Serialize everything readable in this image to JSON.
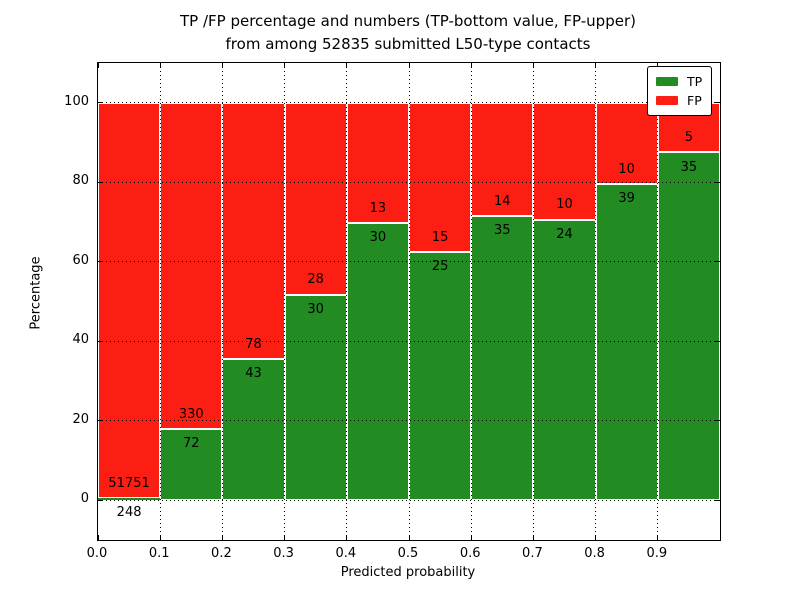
{
  "chart_data": {
    "type": "bar",
    "stacked": true,
    "title_line1": "TP /FP percentage and numbers (TP-bottom value, FP-upper)",
    "title_line2": "from among 52835 submitted L50-type contacts",
    "xlabel": "Predicted probability",
    "ylabel": "Percentage",
    "x_ticks": [
      "0.0",
      "0.1",
      "0.2",
      "0.3",
      "0.4",
      "0.5",
      "0.6",
      "0.7",
      "0.8",
      "0.9"
    ],
    "x_tick_values": [
      0.0,
      0.1,
      0.2,
      0.3,
      0.4,
      0.5,
      0.6,
      0.7,
      0.8,
      0.9
    ],
    "y_ticks": [
      0,
      20,
      40,
      60,
      80,
      100
    ],
    "xlim": [
      0.0,
      1.0
    ],
    "ylim": [
      -10,
      110
    ],
    "grid": true,
    "legend_position": "upper right",
    "total_contacts": 52835,
    "colors": {
      "tp": "#228b22",
      "fp": "#fc1d13",
      "bar_edge": "#ffffff",
      "grid": "#000000"
    },
    "legend": [
      {
        "label": "TP",
        "color": "#228b22"
      },
      {
        "label": "FP",
        "color": "#fc1d13"
      }
    ],
    "bins": [
      {
        "x0": 0.0,
        "tp": 248,
        "fp": 51751
      },
      {
        "x0": 0.1,
        "tp": 72,
        "fp": 330
      },
      {
        "x0": 0.2,
        "tp": 43,
        "fp": 78
      },
      {
        "x0": 0.3,
        "tp": 30,
        "fp": 28
      },
      {
        "x0": 0.4,
        "tp": 30,
        "fp": 13
      },
      {
        "x0": 0.5,
        "tp": 25,
        "fp": 15
      },
      {
        "x0": 0.6,
        "tp": 35,
        "fp": 14
      },
      {
        "x0": 0.7,
        "tp": 24,
        "fp": 10
      },
      {
        "x0": 0.8,
        "tp": 39,
        "fp": 10
      },
      {
        "x0": 0.9,
        "tp": 35,
        "fp": 5
      }
    ]
  }
}
